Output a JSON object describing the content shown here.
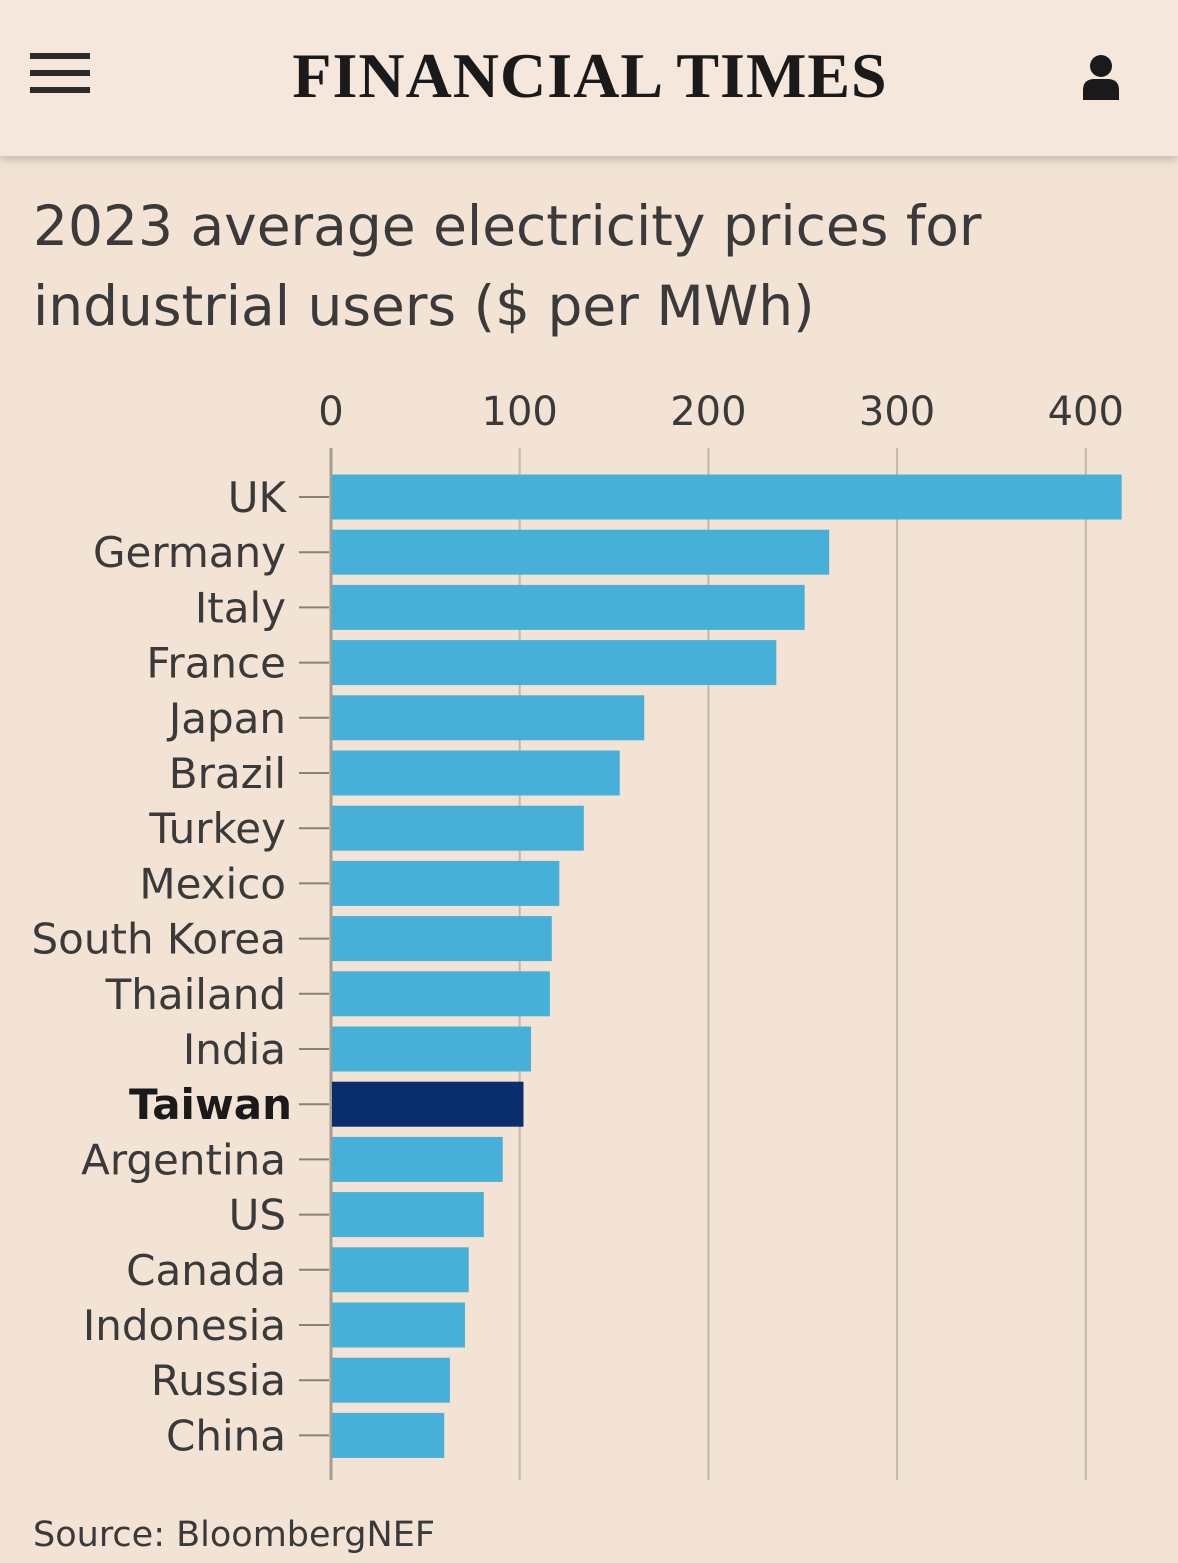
{
  "header": {
    "brand": "FINANCIAL TIMES",
    "menu_icon": "hamburger-menu-icon",
    "user_icon": "user-icon"
  },
  "colors": {
    "background": "#f2e3d5",
    "bar": "#47b0d8",
    "bar_highlight": "#0a2d6e",
    "gridline": "#c4b7aa",
    "text": "#3a3a3a"
  },
  "chart_data": {
    "type": "bar",
    "orientation": "horizontal",
    "title": "2023 average electricity prices for industrial users ($ per MWh)",
    "title_lines": [
      "2023 average electricity prices for",
      "industrial users ($ per MWh)"
    ],
    "categories": [
      "UK",
      "Germany",
      "Italy",
      "France",
      "Japan",
      "Brazil",
      "Turkey",
      "Mexico",
      "South Korea",
      "Thailand",
      "India",
      "Taiwan",
      "Argentina",
      "US",
      "Canada",
      "Indonesia",
      "Russia",
      "China"
    ],
    "values": [
      419,
      264,
      251,
      236,
      166,
      153,
      134,
      121,
      117,
      116,
      106,
      102,
      91,
      81,
      73,
      71,
      63,
      60
    ],
    "highlight": "Taiwan",
    "xlim": [
      0,
      400
    ],
    "xticks": [
      0,
      100,
      200,
      300,
      400
    ],
    "xlabel": "",
    "ylabel": "",
    "grid": true
  },
  "source": "Source: BloombergNEF"
}
